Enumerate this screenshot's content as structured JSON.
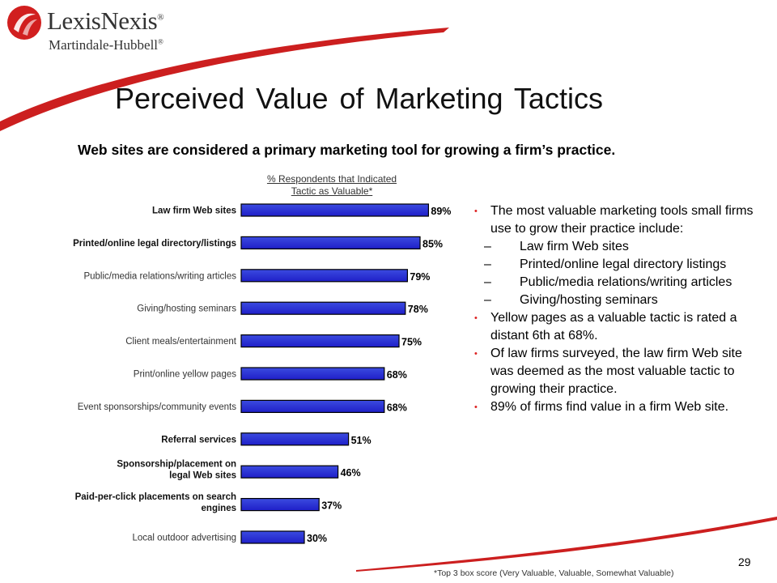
{
  "logo": {
    "name": "LexisNexis",
    "registered": "®",
    "sub": "Martindale-Hubbell",
    "sub_registered": "®"
  },
  "title": "Perceived Value of Marketing Tactics",
  "subtitle": "Web sites are considered a primary marketing tool for growing a  firm’s practice.",
  "colors": {
    "accent_red": "#cc1f1f",
    "bar_fill": "#1f1fc8",
    "bar_fill_light": "#3b4be0"
  },
  "chart_data": {
    "type": "bar",
    "orientation": "horizontal",
    "title": "% Respondents that Indicated Tactic as Valuable*",
    "title_lines": [
      "% Respondents that Indicated",
      "Tactic as Valuable*"
    ],
    "categories": [
      [
        "Law firm Web sites"
      ],
      [
        "Printed/online legal directory/listings"
      ],
      [
        "Public/media relations/writing articles"
      ],
      [
        "Giving/hosting seminars"
      ],
      [
        "Client meals/entertainment"
      ],
      [
        "Print/online yellow pages"
      ],
      [
        "Event sponsorships/community events"
      ],
      [
        "Referral services"
      ],
      [
        "Sponsorship/placement on",
        "legal Web sites"
      ],
      [
        "Paid-per-click placements on search",
        "engines"
      ],
      [
        "Local outdoor advertising"
      ]
    ],
    "bold_categories": [
      true,
      true,
      false,
      false,
      false,
      false,
      false,
      true,
      true,
      true,
      false
    ],
    "values": [
      89,
      85,
      79,
      78,
      75,
      68,
      68,
      51,
      46,
      37,
      30
    ],
    "value_labels": [
      "89%",
      "85%",
      "79%",
      "78%",
      "75%",
      "68%",
      "68%",
      "51%",
      "46%",
      "37%",
      "30%"
    ],
    "xlim": [
      0,
      100
    ]
  },
  "bullets": {
    "b1": "The most valuable marketing tools small firms use to grow their practice include:",
    "b1_sub": [
      "Law firm Web sites",
      "Printed/online legal directory listings",
      "Public/media relations/writing articles",
      "Giving/hosting seminars"
    ],
    "b2": "Yellow pages as a valuable tactic is rated a distant 6th at 68%.",
    "b3": "Of law firms surveyed, the law firm Web site was deemed as the most valuable tactic to growing their practice.",
    "b4": "89% of firms find value in a firm Web site.",
    "dot": "•",
    "dash": "–"
  },
  "footer": {
    "page_number": "29",
    "footnote": "*Top 3 box score (Very Valuable, Valuable, Somewhat Valuable)"
  }
}
